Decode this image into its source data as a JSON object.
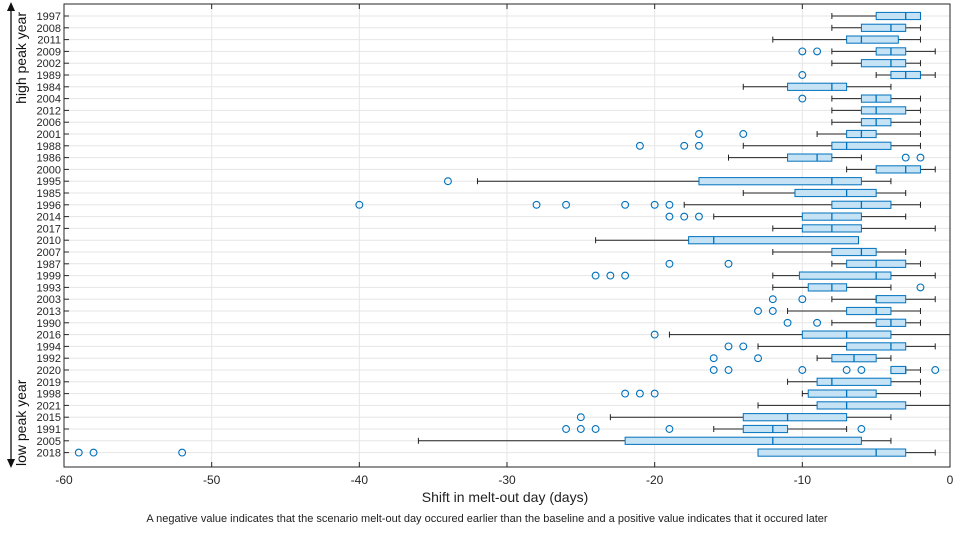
{
  "chart_data": {
    "type": "boxplot",
    "orientation": "horizontal",
    "title": "",
    "xlabel": "Shift in melt-out day (days)",
    "ylabel_top": "high peak year",
    "ylabel_bottom": "low peak year",
    "xlim": [
      -60,
      0
    ],
    "xticks": [
      -60,
      -50,
      -40,
      -30,
      -20,
      -10,
      0
    ],
    "xtick_labels": [
      "-60",
      "-50",
      "-40",
      "-30",
      "-20",
      "-10",
      "0"
    ],
    "grid": true,
    "box_color": "#0072bd",
    "box_fill": "#c6e2f5",
    "caption": "A negative value indicates that the scenario melt-out day occured earlier than the baseline and a positive value indicates that it occured later",
    "years": [
      {
        "label": "1997",
        "wlo": -8,
        "q1": -5,
        "med": -3,
        "q3": -2,
        "whi": -2,
        "outliers": []
      },
      {
        "label": "2008",
        "wlo": -8,
        "q1": -6,
        "med": -4,
        "q3": -3,
        "whi": -2,
        "outliers": []
      },
      {
        "label": "2011",
        "wlo": -12,
        "q1": -7,
        "med": -6,
        "q3": -3.5,
        "whi": -2,
        "outliers": []
      },
      {
        "label": "2009",
        "wlo": -8,
        "q1": -5,
        "med": -4,
        "q3": -3,
        "whi": -1,
        "outliers": [
          -10,
          -9
        ]
      },
      {
        "label": "2002",
        "wlo": -8,
        "q1": -6,
        "med": -4,
        "q3": -3,
        "whi": -2,
        "outliers": []
      },
      {
        "label": "1989",
        "wlo": -5,
        "q1": -4,
        "med": -3,
        "q3": -2,
        "whi": -1,
        "outliers": [
          -10
        ]
      },
      {
        "label": "1984",
        "wlo": -14,
        "q1": -11,
        "med": -8,
        "q3": -7,
        "whi": -4,
        "outliers": []
      },
      {
        "label": "2004",
        "wlo": -8,
        "q1": -6,
        "med": -5,
        "q3": -4,
        "whi": -2,
        "outliers": [
          -10
        ]
      },
      {
        "label": "2012",
        "wlo": -8,
        "q1": -6,
        "med": -5,
        "q3": -3,
        "whi": -2,
        "outliers": []
      },
      {
        "label": "2006",
        "wlo": -8,
        "q1": -6,
        "med": -5,
        "q3": -4,
        "whi": -2,
        "outliers": []
      },
      {
        "label": "2001",
        "wlo": -9,
        "q1": -7,
        "med": -6,
        "q3": -5,
        "whi": -2,
        "outliers": [
          -17,
          -14
        ]
      },
      {
        "label": "1988",
        "wlo": -14,
        "q1": -8,
        "med": -7,
        "q3": -4,
        "whi": -2,
        "outliers": [
          -21,
          -18,
          -17
        ]
      },
      {
        "label": "1986",
        "wlo": -15,
        "q1": -11,
        "med": -9,
        "q3": -8,
        "whi": -6,
        "outliers": [
          -3,
          -2
        ]
      },
      {
        "label": "2000",
        "wlo": -7,
        "q1": -5,
        "med": -3,
        "q3": -2,
        "whi": -1,
        "outliers": []
      },
      {
        "label": "1995",
        "wlo": -32,
        "q1": -17,
        "med": -8,
        "q3": -6,
        "whi": -4,
        "outliers": [
          -34
        ]
      },
      {
        "label": "1985",
        "wlo": -14,
        "q1": -10.5,
        "med": -7,
        "q3": -5,
        "whi": -3,
        "outliers": []
      },
      {
        "label": "1996",
        "wlo": -18,
        "q1": -8,
        "med": -6,
        "q3": -4,
        "whi": -2,
        "outliers": [
          -40,
          -28,
          -26,
          -22,
          -20,
          -19
        ]
      },
      {
        "label": "2014",
        "wlo": -16,
        "q1": -10,
        "med": -8,
        "q3": -6,
        "whi": -3,
        "outliers": [
          -19,
          -18,
          -17
        ]
      },
      {
        "label": "2017",
        "wlo": -12,
        "q1": -10,
        "med": -8,
        "q3": -6,
        "whi": -1,
        "outliers": []
      },
      {
        "label": "2010",
        "wlo": -24,
        "q1": -17.7,
        "med": -16,
        "q3": -6.2,
        "whi": -6.2,
        "outliers": []
      },
      {
        "label": "2007",
        "wlo": -12,
        "q1": -8,
        "med": -6,
        "q3": -5,
        "whi": -3,
        "outliers": []
      },
      {
        "label": "1987",
        "wlo": -8,
        "q1": -7,
        "med": -5,
        "q3": -3,
        "whi": -2,
        "outliers": [
          -19,
          -15
        ]
      },
      {
        "label": "1999",
        "wlo": -12,
        "q1": -10.2,
        "med": -5,
        "q3": -4,
        "whi": -1,
        "outliers": [
          -24,
          -23,
          -22
        ]
      },
      {
        "label": "1993",
        "wlo": -12,
        "q1": -9.6,
        "med": -8,
        "q3": -7,
        "whi": -4,
        "outliers": [
          -2
        ]
      },
      {
        "label": "2003",
        "wlo": -8,
        "q1": -5,
        "med": -5,
        "q3": -3,
        "whi": -1,
        "outliers": [
          -12,
          -10
        ]
      },
      {
        "label": "2013",
        "wlo": -11,
        "q1": -7,
        "med": -5,
        "q3": -4,
        "whi": -2,
        "outliers": [
          -13,
          -12
        ]
      },
      {
        "label": "1990",
        "wlo": -8,
        "q1": -5,
        "med": -4,
        "q3": -3,
        "whi": -2,
        "outliers": [
          -11,
          -9
        ]
      },
      {
        "label": "2016",
        "wlo": -19,
        "q1": -10,
        "med": -7,
        "q3": -4,
        "whi": 0,
        "outliers": [
          -20
        ]
      },
      {
        "label": "1994",
        "wlo": -13,
        "q1": -7,
        "med": -4,
        "q3": -3,
        "whi": -1,
        "outliers": [
          -15,
          -14
        ]
      },
      {
        "label": "1992",
        "wlo": -9,
        "q1": -8,
        "med": -6.5,
        "q3": -5,
        "whi": -4,
        "outliers": [
          -16,
          -13
        ]
      },
      {
        "label": "2020",
        "wlo": -4,
        "q1": -4,
        "med": -3,
        "q3": -3,
        "whi": -2,
        "outliers": [
          -16,
          -15,
          -10,
          -7,
          -6,
          -1
        ]
      },
      {
        "label": "2019",
        "wlo": -11,
        "q1": -9,
        "med": -8,
        "q3": -4,
        "whi": -2,
        "outliers": []
      },
      {
        "label": "1998",
        "wlo": -10,
        "q1": -9.6,
        "med": -7,
        "q3": -5,
        "whi": -2,
        "outliers": [
          -22,
          -21,
          -20
        ]
      },
      {
        "label": "2021",
        "wlo": -13,
        "q1": -9,
        "med": -7,
        "q3": -3,
        "whi": 0,
        "outliers": []
      },
      {
        "label": "2015",
        "wlo": -23,
        "q1": -14,
        "med": -11,
        "q3": -7,
        "whi": -4,
        "outliers": [
          -25
        ]
      },
      {
        "label": "1991",
        "wlo": -16,
        "q1": -14,
        "med": -12,
        "q3": -11,
        "whi": -7,
        "outliers": [
          -26,
          -25,
          -24,
          -19,
          -6
        ]
      },
      {
        "label": "2005",
        "wlo": -36,
        "q1": -22,
        "med": -12,
        "q3": -6,
        "whi": -4,
        "outliers": []
      },
      {
        "label": "2018",
        "wlo": -13,
        "q1": -13,
        "med": -5,
        "q3": -3,
        "whi": -1,
        "outliers": [
          -59,
          -58,
          -52
        ]
      }
    ]
  }
}
